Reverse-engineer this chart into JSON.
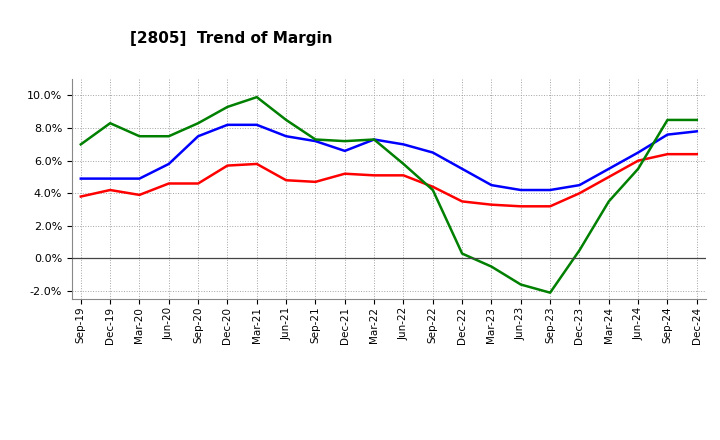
{
  "title": "[2805]  Trend of Margin",
  "x_labels": [
    "Sep-19",
    "Dec-19",
    "Mar-20",
    "Jun-20",
    "Sep-20",
    "Dec-20",
    "Mar-21",
    "Jun-21",
    "Sep-21",
    "Dec-21",
    "Mar-22",
    "Jun-22",
    "Sep-22",
    "Dec-22",
    "Mar-23",
    "Jun-23",
    "Sep-23",
    "Dec-23",
    "Mar-24",
    "Jun-24",
    "Sep-24",
    "Dec-24"
  ],
  "ordinary_income": [
    4.9,
    4.9,
    4.9,
    5.8,
    7.5,
    8.2,
    8.2,
    7.5,
    7.2,
    6.6,
    7.3,
    7.0,
    6.5,
    5.5,
    4.5,
    4.2,
    4.2,
    4.5,
    5.5,
    6.5,
    7.6,
    7.8
  ],
  "net_income": [
    3.8,
    4.2,
    3.9,
    4.6,
    4.6,
    5.7,
    5.8,
    4.8,
    4.7,
    5.2,
    5.1,
    5.1,
    4.4,
    3.5,
    3.3,
    3.2,
    3.2,
    4.0,
    5.0,
    6.0,
    6.4,
    6.4
  ],
  "operating_cashflow": [
    7.0,
    8.3,
    7.5,
    7.5,
    8.3,
    9.3,
    9.9,
    8.5,
    7.3,
    7.2,
    7.3,
    5.8,
    4.2,
    0.3,
    -0.5,
    -1.6,
    -2.1,
    0.5,
    3.5,
    5.5,
    8.5,
    8.5
  ],
  "ylim": [
    -2.5,
    11.0
  ],
  "yticks": [
    -2.0,
    0.0,
    2.0,
    4.0,
    6.0,
    8.0,
    10.0
  ],
  "color_blue": "#0000FF",
  "color_red": "#FF0000",
  "color_green": "#008000",
  "background_color": "#FFFFFF",
  "grid_color": "#999999"
}
